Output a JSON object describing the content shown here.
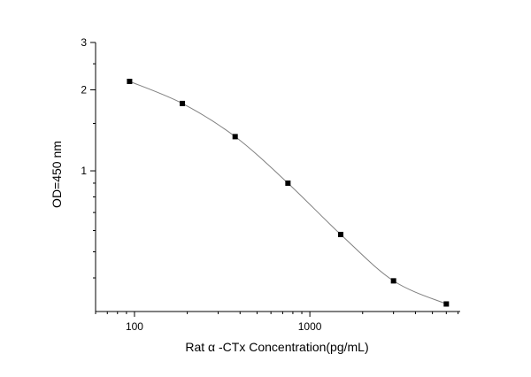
{
  "chart_data": {
    "type": "scatter",
    "xscale": "log",
    "yscale": "log",
    "xlabel": "Rat α -CTx  Concentration(pg/mL)",
    "ylabel": "OD=450 nm",
    "xlim": [
      60,
      7200
    ],
    "ylim": [
      0.3,
      3
    ],
    "x_ticks": [
      {
        "value": 100,
        "label": "100"
      },
      {
        "value": 1000,
        "label": "1000"
      }
    ],
    "y_ticks": [
      {
        "value": 1,
        "label": "1"
      },
      {
        "value": 2,
        "label": "2"
      },
      {
        "value": 3,
        "label": "3"
      }
    ],
    "series": [
      {
        "x": [
          93.75,
          187.5,
          375,
          750,
          1500,
          3000,
          6000
        ],
        "y": [
          2.15,
          1.78,
          1.34,
          0.9,
          0.58,
          0.39,
          0.32
        ],
        "marker": "square",
        "line": true
      }
    ],
    "grid": false,
    "legend": false,
    "colors": {
      "marker": "#000000",
      "line": "#7f7f7f",
      "axis": "#000000"
    }
  }
}
